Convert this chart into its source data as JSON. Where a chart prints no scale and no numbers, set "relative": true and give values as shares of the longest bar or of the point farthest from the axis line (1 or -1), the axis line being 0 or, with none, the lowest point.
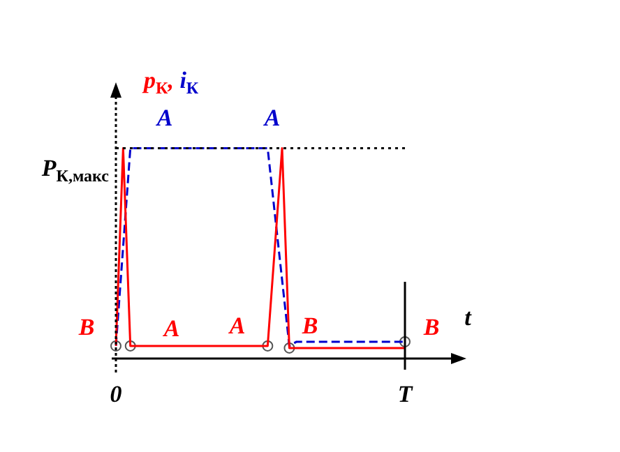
{
  "chart_data": {
    "type": "line",
    "relative": true,
    "ylabel": "p$_{К}$, i$_{К}$",
    "xlabel": "t",
    "tick_labels": "x",
    "legend": false,
    "categories": [
      "0",
      null,
      null,
      null,
      null,
      null,
      null,
      null,
      null,
      null,
      null,
      null,
      null,
      null,
      null,
      null,
      null,
      null,
      null,
      null,
      null,
      null,
      null,
      null,
      null,
      null,
      null,
      null,
      null,
      null,
      null,
      null,
      null,
      null,
      null,
      null,
      null,
      null,
      null,
      null,
      "T"
    ],
    "series": [
      {
        "color": "#ff0000",
        "line_style": "solid",
        "values": [
          0.06,
          1,
          0.06,
          0.06,
          0.06,
          0.06,
          0.06,
          0.06,
          0.06,
          0.06,
          0.06,
          0.06,
          0.06,
          0.06,
          0.06,
          0.06,
          0.06,
          0.06,
          0.06,
          0.06,
          0.06,
          0.06,
          null,
          1,
          0.05,
          0.05,
          0.05,
          0.05,
          0.05,
          0.05,
          0.05,
          0.05,
          0.05,
          0.05,
          0.05,
          0.05,
          0.05,
          0.05,
          0.05,
          0.05,
          0.05
        ]
      },
      {
        "color": "#0000cc",
        "line_style": "dashed",
        "values": [
          0.06,
          null,
          1,
          1,
          1,
          1,
          1,
          1,
          1,
          1,
          1,
          1,
          1,
          1,
          1,
          1,
          1,
          1,
          1,
          1,
          1,
          1,
          null,
          null,
          0.06,
          0.08,
          0.08,
          0.08,
          0.08,
          0.08,
          0.08,
          0.08,
          0.08,
          0.08,
          0.08,
          0.08,
          0.08,
          0.08,
          0.08,
          0.08,
          0.08
        ]
      },
      {
        "type": "scatter",
        "marker": "circle",
        "color": "#555555",
        "values": [
          0.06,
          null,
          0.06,
          null,
          null,
          null,
          null,
          null,
          null,
          null,
          null,
          null,
          null,
          null,
          null,
          null,
          null,
          null,
          null,
          null,
          null,
          0.06,
          null,
          null,
          0.05,
          null,
          null,
          null,
          null,
          null,
          null,
          null,
          null,
          null,
          null,
          null,
          null,
          null,
          null,
          null,
          0.08
        ]
      }
    ],
    "ref_lines": [
      {
        "axis": "y",
        "value": 1,
        "label": "P$_{К,макс}$",
        "color": "#000000",
        "line_style": "dotted"
      }
    ],
    "annotations": [
      "A",
      "A",
      "B",
      "A",
      "A",
      "B",
      "B"
    ]
  }
}
